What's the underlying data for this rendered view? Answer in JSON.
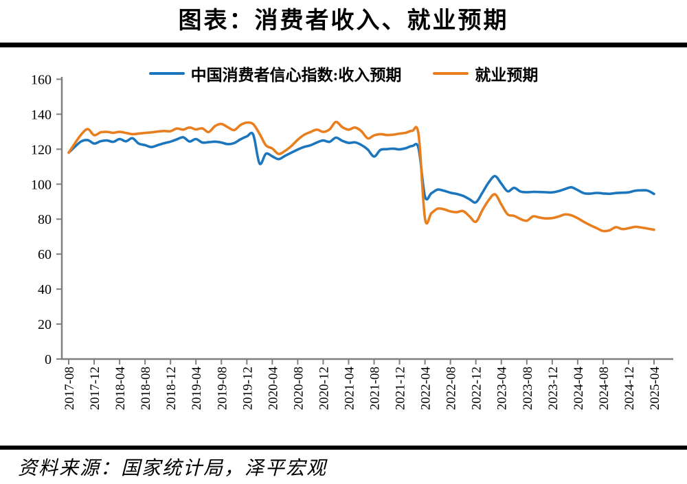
{
  "title": "图表：消费者收入、就业预期",
  "source": "资料来源：国家统计局，泽平宏观",
  "legend": {
    "items": [
      {
        "label": "中国消费者信心指数:收入预期",
        "color": "#1B76BE"
      },
      {
        "label": "就业预期",
        "color": "#E87E1E"
      }
    ]
  },
  "chart_data": {
    "type": "line",
    "x_monthly_range": [
      "2017-08",
      "2025-04"
    ],
    "x_tick_labels": [
      "2017-08",
      "2017-12",
      "2018-04",
      "2018-08",
      "2018-12",
      "2019-04",
      "2019-08",
      "2019-12",
      "2020-04",
      "2020-08",
      "2020-12",
      "2021-04",
      "2021-08",
      "2021-12",
      "2022-04",
      "2022-08",
      "2022-12",
      "2023-04",
      "2023-08",
      "2023-12",
      "2024-04",
      "2024-08",
      "2024-12",
      "2025-04"
    ],
    "x_tick_every": 4,
    "y_ticks": [
      0,
      20,
      40,
      60,
      80,
      100,
      120,
      140,
      160
    ],
    "ylim": [
      0,
      160
    ],
    "grid": false,
    "legend_position": "top-center",
    "axis_color": "#7F7F7F",
    "series": [
      {
        "name": "中国消费者信心指数:收入预期",
        "color": "#1B76BE",
        "values": [
          118.0,
          121.5,
          124.5,
          125.2,
          123.2,
          124.5,
          125.0,
          124.2,
          125.8,
          124.5,
          126.3,
          123.2,
          122.3,
          121.2,
          122.3,
          123.4,
          124.3,
          125.6,
          126.8,
          124.4,
          125.8,
          123.8,
          124.0,
          124.3,
          123.8,
          122.9,
          123.5,
          125.6,
          127.3,
          128.3,
          111.8,
          117.4,
          115.9,
          114.3,
          116.2,
          118.0,
          119.8,
          121.3,
          122.2,
          123.8,
          125.0,
          124.2,
          126.6,
          124.8,
          123.6,
          123.9,
          122.4,
          119.8,
          115.8,
          119.6,
          120.0,
          120.3,
          119.9,
          120.6,
          121.8,
          120.4,
          92.9,
          94.8,
          96.9,
          96.2,
          95.1,
          94.4,
          93.3,
          91.4,
          89.6,
          95.0,
          100.9,
          104.6,
          100.3,
          95.9,
          97.9,
          95.8,
          95.4,
          95.6,
          95.5,
          95.4,
          95.3,
          96.0,
          97.2,
          98.2,
          96.6,
          94.8,
          94.6,
          95.0,
          94.7,
          94.5,
          94.9,
          95.1,
          95.3,
          96.2,
          96.5,
          96.3,
          94.4
        ]
      },
      {
        "name": "就业预期",
        "color": "#E87E1E",
        "values": [
          118.0,
          123.5,
          128.5,
          131.5,
          128.0,
          129.6,
          129.9,
          129.4,
          129.9,
          129.3,
          128.6,
          128.9,
          129.3,
          129.6,
          130.1,
          130.4,
          130.3,
          131.8,
          131.2,
          132.4,
          131.3,
          131.9,
          129.8,
          133.2,
          134.4,
          132.6,
          130.9,
          133.8,
          135.2,
          134.3,
          128.8,
          122.2,
          120.4,
          117.3,
          119.0,
          121.8,
          125.4,
          128.2,
          129.8,
          131.2,
          129.9,
          131.3,
          135.6,
          132.6,
          131.2,
          132.4,
          130.3,
          126.2,
          127.9,
          128.6,
          128.1,
          128.3,
          128.9,
          129.4,
          130.5,
          128.3,
          80.4,
          83.4,
          86.0,
          85.6,
          84.4,
          84.0,
          84.6,
          81.6,
          78.5,
          85.0,
          90.8,
          94.2,
          88.4,
          82.7,
          81.9,
          80.1,
          79.1,
          81.6,
          80.9,
          80.4,
          80.6,
          81.5,
          82.7,
          82.2,
          80.5,
          78.4,
          76.5,
          74.8,
          73.2,
          73.6,
          75.4,
          74.3,
          74.8,
          75.6,
          75.2,
          74.6,
          73.9
        ]
      }
    ]
  }
}
